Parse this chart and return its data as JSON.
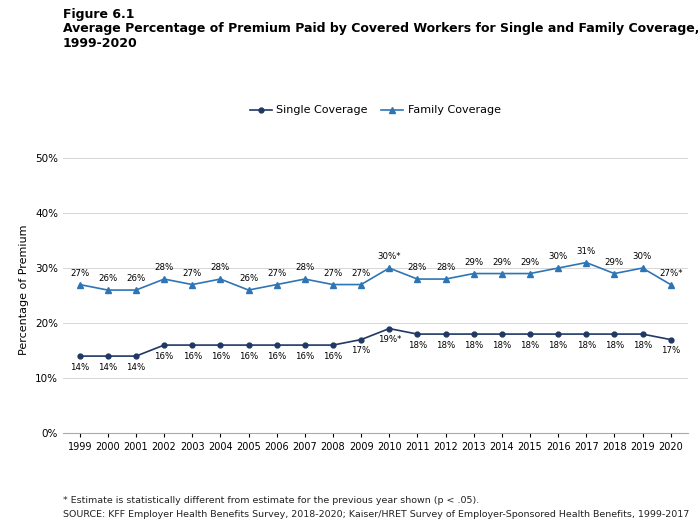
{
  "years": [
    1999,
    2000,
    2001,
    2002,
    2003,
    2004,
    2005,
    2006,
    2007,
    2008,
    2009,
    2010,
    2011,
    2012,
    2013,
    2014,
    2015,
    2016,
    2017,
    2018,
    2019,
    2020
  ],
  "single": [
    14,
    14,
    14,
    16,
    16,
    16,
    16,
    16,
    16,
    16,
    17,
    19,
    18,
    18,
    18,
    18,
    18,
    18,
    18,
    18,
    18,
    17
  ],
  "family": [
    27,
    26,
    26,
    28,
    27,
    28,
    26,
    27,
    28,
    27,
    27,
    30,
    28,
    28,
    29,
    29,
    29,
    30,
    31,
    29,
    30,
    27
  ],
  "single_star": [
    false,
    false,
    false,
    false,
    false,
    false,
    false,
    false,
    false,
    false,
    false,
    true,
    false,
    false,
    false,
    false,
    false,
    false,
    false,
    false,
    false,
    false
  ],
  "family_star": [
    false,
    false,
    false,
    false,
    false,
    false,
    false,
    false,
    false,
    false,
    false,
    true,
    false,
    false,
    false,
    false,
    false,
    false,
    false,
    false,
    false,
    true
  ],
  "single_color": "#1f3864",
  "family_color": "#2e75b6",
  "title_line1": "Figure 6.1",
  "title_line2": "Average Percentage of Premium Paid by Covered Workers for Single and Family Coverage,",
  "title_line3": "1999-2020",
  "ylabel": "Percentage of Premium",
  "footnote1": "* Estimate is statistically different from estimate for the previous year shown (p < .05).",
  "footnote2": "SOURCE: KFF Employer Health Benefits Survey, 2018-2020; Kaiser/HRET Survey of Employer-Sponsored Health Benefits, 1999-2017",
  "legend_single": "Single Coverage",
  "legend_family": "Family Coverage",
  "ylim": [
    0,
    52
  ],
  "yticks": [
    0,
    10,
    20,
    30,
    40,
    50
  ],
  "background_color": "#ffffff"
}
